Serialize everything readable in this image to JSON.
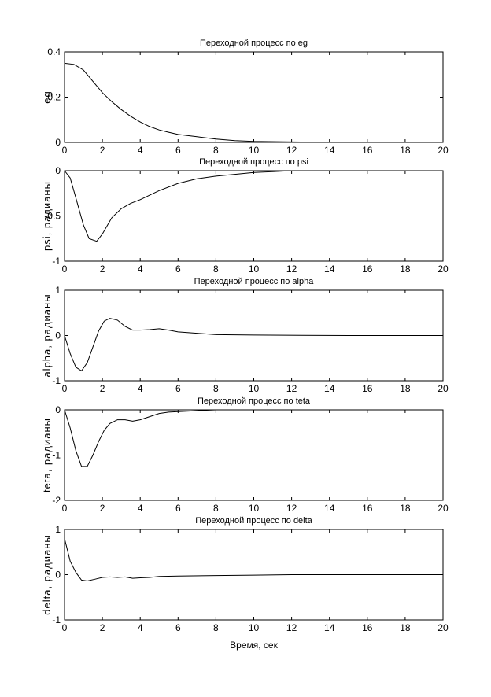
{
  "chart_data": [
    {
      "type": "line",
      "title": "Переходной процесс по eg",
      "ylabel": "eg",
      "xlim": [
        0,
        20
      ],
      "ylim": [
        0,
        0.4
      ],
      "xticks": [
        "0",
        "2",
        "4",
        "6",
        "8",
        "10",
        "12",
        "14",
        "16",
        "18",
        "20"
      ],
      "yticks": [
        "0",
        "0.2",
        "0.4"
      ],
      "series": [
        {
          "x": [
            0,
            0.5,
            1,
            1.5,
            2,
            2.5,
            3,
            3.5,
            4,
            4.5,
            5,
            5.5,
            6,
            7,
            8,
            9,
            10,
            12,
            14,
            16,
            18,
            20
          ],
          "values": [
            0.35,
            0.345,
            0.32,
            0.27,
            0.22,
            0.18,
            0.145,
            0.115,
            0.09,
            0.07,
            0.055,
            0.045,
            0.035,
            0.025,
            0.015,
            0.008,
            0.004,
            0.002,
            0.001,
            0.0,
            0.0,
            0.0
          ]
        }
      ]
    },
    {
      "type": "line",
      "title": "Переходной процесс по psi",
      "ylabel": "psi, радианы",
      "xlim": [
        0,
        20
      ],
      "ylim": [
        -1,
        0
      ],
      "xticks": [
        "0",
        "2",
        "4",
        "6",
        "8",
        "10",
        "12",
        "14",
        "16",
        "18",
        "20"
      ],
      "yticks": [
        "0",
        "-0.5",
        "-1"
      ],
      "series": [
        {
          "x": [
            0,
            0.3,
            0.6,
            1,
            1.3,
            1.7,
            2,
            2.5,
            3,
            3.5,
            4,
            5,
            6,
            7,
            8,
            9,
            10,
            11,
            12
          ],
          "values": [
            0,
            -0.08,
            -0.3,
            -0.6,
            -0.75,
            -0.78,
            -0.7,
            -0.52,
            -0.42,
            -0.36,
            -0.32,
            -0.22,
            -0.14,
            -0.09,
            -0.06,
            -0.04,
            -0.02,
            -0.01,
            0
          ]
        }
      ]
    },
    {
      "type": "line",
      "title": "Переходной процесс по alpha",
      "ylabel": "alpha, радианы",
      "xlim": [
        0,
        20
      ],
      "ylim": [
        -1,
        1
      ],
      "xticks": [
        "0",
        "2",
        "4",
        "6",
        "8",
        "10",
        "12",
        "14",
        "16",
        "18",
        "20"
      ],
      "yticks": [
        "1",
        "0",
        "-1"
      ],
      "series": [
        {
          "x": [
            0,
            0.3,
            0.6,
            0.9,
            1.2,
            1.5,
            1.8,
            2.1,
            2.4,
            2.8,
            3.2,
            3.6,
            4,
            4.5,
            5,
            5.5,
            6,
            7,
            8,
            10,
            15,
            20
          ],
          "values": [
            0,
            -0.4,
            -0.7,
            -0.78,
            -0.6,
            -0.25,
            0.1,
            0.32,
            0.38,
            0.34,
            0.2,
            0.12,
            0.12,
            0.13,
            0.15,
            0.12,
            0.08,
            0.05,
            0.02,
            0.01,
            0.0,
            0.0
          ]
        }
      ]
    },
    {
      "type": "line",
      "title": "Переходной процесс по teta",
      "ylabel": "teta, радианы",
      "xlim": [
        0,
        20
      ],
      "ylim": [
        -2,
        0
      ],
      "xticks": [
        "0",
        "2",
        "4",
        "6",
        "8",
        "10",
        "12",
        "14",
        "16",
        "18",
        "20"
      ],
      "yticks": [
        "0",
        "-1",
        "-2"
      ],
      "series": [
        {
          "x": [
            0,
            0.3,
            0.6,
            0.9,
            1.2,
            1.5,
            1.8,
            2.1,
            2.4,
            2.8,
            3.2,
            3.6,
            4,
            4.5,
            5,
            5.5,
            6,
            7,
            8
          ],
          "values": [
            0,
            -0.4,
            -0.9,
            -1.25,
            -1.25,
            -1.0,
            -0.7,
            -0.45,
            -0.3,
            -0.22,
            -0.22,
            -0.25,
            -0.22,
            -0.15,
            -0.08,
            -0.05,
            -0.04,
            -0.02,
            0
          ]
        }
      ]
    },
    {
      "type": "line",
      "title": "Переходной процесс по delta",
      "ylabel": "delta, радианы",
      "xlabel": "Время, сек",
      "xlim": [
        0,
        20
      ],
      "ylim": [
        -1,
        1
      ],
      "xticks": [
        "0",
        "2",
        "4",
        "6",
        "8",
        "10",
        "12",
        "14",
        "16",
        "18",
        "20"
      ],
      "yticks": [
        "1",
        "0",
        "-1"
      ],
      "series": [
        {
          "x": [
            0,
            0.3,
            0.6,
            0.9,
            1.2,
            1.6,
            2,
            2.4,
            2.8,
            3.2,
            3.6,
            4,
            4.5,
            5,
            6,
            8,
            10,
            12,
            15,
            20
          ],
          "values": [
            0.8,
            0.3,
            0.05,
            -0.12,
            -0.14,
            -0.1,
            -0.06,
            -0.05,
            -0.06,
            -0.05,
            -0.08,
            -0.07,
            -0.06,
            -0.04,
            -0.03,
            -0.02,
            -0.01,
            0,
            0,
            0
          ]
        }
      ]
    }
  ]
}
